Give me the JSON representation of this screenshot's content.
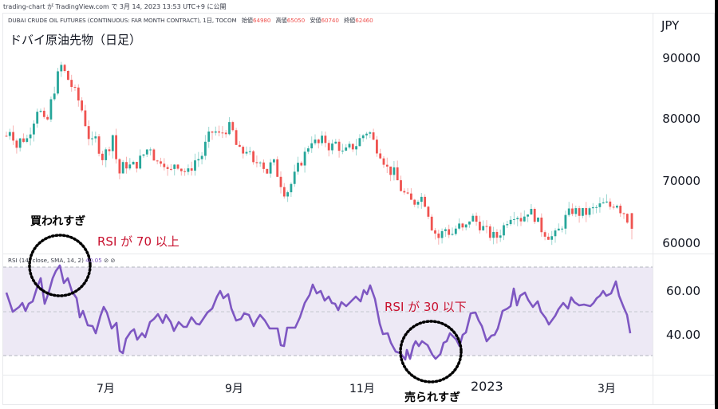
{
  "header": {
    "published": "trading-chart が TradingView.com で 3月 14, 2023 13:53 UTC+9 に公開",
    "symbol": "DUBAI CRUDE OIL FUTURES (CONTINUOUS: FAR MONTH CONTRACT), 1日, TOCOM",
    "ohlc": {
      "open_label": "始値",
      "open": "64980",
      "high_label": "高値",
      "high": "65050",
      "low_label": "安値",
      "low": "60740",
      "close_label": "終値",
      "close": "62460"
    },
    "title": "ドバイ原油先物（日足）"
  },
  "price_axis": {
    "currency": "JPY",
    "ticks": [
      "90000",
      "80000",
      "70000",
      "60000"
    ]
  },
  "rsi_pane": {
    "legend": "RSI (14, close, SMA, 14, 2)",
    "value": "40.05",
    "icons": [
      "⊘",
      "⊘"
    ],
    "ticks": [
      "60.00",
      "40.00"
    ]
  },
  "time_axis": {
    "ticks": [
      "7月",
      "9月",
      "11月",
      "2023",
      "3月"
    ]
  },
  "annotations": {
    "overbought": "買われすぎ",
    "overbought_note": "RSI が 70 以上",
    "oversold": "売られすぎ",
    "oversold_note": "RSI が 30 以下"
  },
  "colors": {
    "up": "#26a69a",
    "down": "#ef5350",
    "rsi_line": "#7e57c2",
    "rsi_band": "#ede9f5",
    "annotation_red": "#c8102e"
  },
  "chart_data": [
    {
      "type": "candlestick",
      "title": "ドバイ原油先物（日足）",
      "subtitle": "DUBAI CRUDE OIL FUTURES (CONTINUOUS: FAR MONTH CONTRACT), 1日, TOCOM",
      "ylabel": "JPY",
      "ylim": [
        58500,
        93500
      ],
      "yticks": [
        60000,
        70000,
        80000,
        90000
      ],
      "xticks": [
        "7月",
        "9月",
        "11月",
        "2023",
        "3月"
      ],
      "last_bar": {
        "open": 64980,
        "high": 65050,
        "low": 60740,
        "close": 62460
      },
      "approx_close_path": [
        {
          "x": "2022-05",
          "close": 76000
        },
        {
          "x": "2022-05-mid",
          "close": 80000
        },
        {
          "x": "2022-06-mid",
          "close": 89000
        },
        {
          "x": "2022-07-early",
          "close": 78000
        },
        {
          "x": "2022-07-mid",
          "close": 69000
        },
        {
          "x": "2022-08-early",
          "close": 72000
        },
        {
          "x": "2022-08-late",
          "close": 78500
        },
        {
          "x": "2022-09-mid",
          "close": 70000
        },
        {
          "x": "2022-10-early",
          "close": 67000
        },
        {
          "x": "2022-10-mid",
          "close": 76000
        },
        {
          "x": "2022-11-mid",
          "close": 78000
        },
        {
          "x": "2022-12-early",
          "close": 65000
        },
        {
          "x": "2022-12-mid",
          "close": 60500
        },
        {
          "x": "2023-01-early",
          "close": 64000
        },
        {
          "x": "2023-01-mid",
          "close": 60500
        },
        {
          "x": "2023-02-early",
          "close": 66000
        },
        {
          "x": "2023-02-mid",
          "close": 61000
        },
        {
          "x": "2023-03-early",
          "close": 67000
        },
        {
          "x": "2023-03-14",
          "close": 62460
        }
      ]
    },
    {
      "type": "line",
      "title": "RSI (14, close, SMA, 14, 2)",
      "ylim": [
        22,
        75
      ],
      "yticks": [
        40,
        60
      ],
      "band": [
        30,
        70
      ],
      "last_value": 40.05,
      "approx_values": [
        52,
        47,
        48,
        51,
        57,
        68,
        72,
        66,
        55,
        48,
        44,
        46,
        35,
        37,
        42,
        48,
        47,
        42,
        39,
        43,
        46,
        44,
        47,
        45,
        53,
        62,
        57,
        48,
        46,
        52,
        48,
        44,
        33,
        47,
        49,
        58,
        60,
        54,
        53,
        56,
        58,
        63,
        48,
        37,
        34,
        33,
        35,
        28,
        36,
        38,
        32,
        29,
        34,
        38,
        33,
        45,
        49,
        47,
        44,
        39,
        46,
        48,
        58,
        52,
        54,
        49,
        52,
        48,
        46,
        52,
        55,
        51,
        52,
        54,
        62,
        55,
        49,
        40
      ]
    }
  ]
}
